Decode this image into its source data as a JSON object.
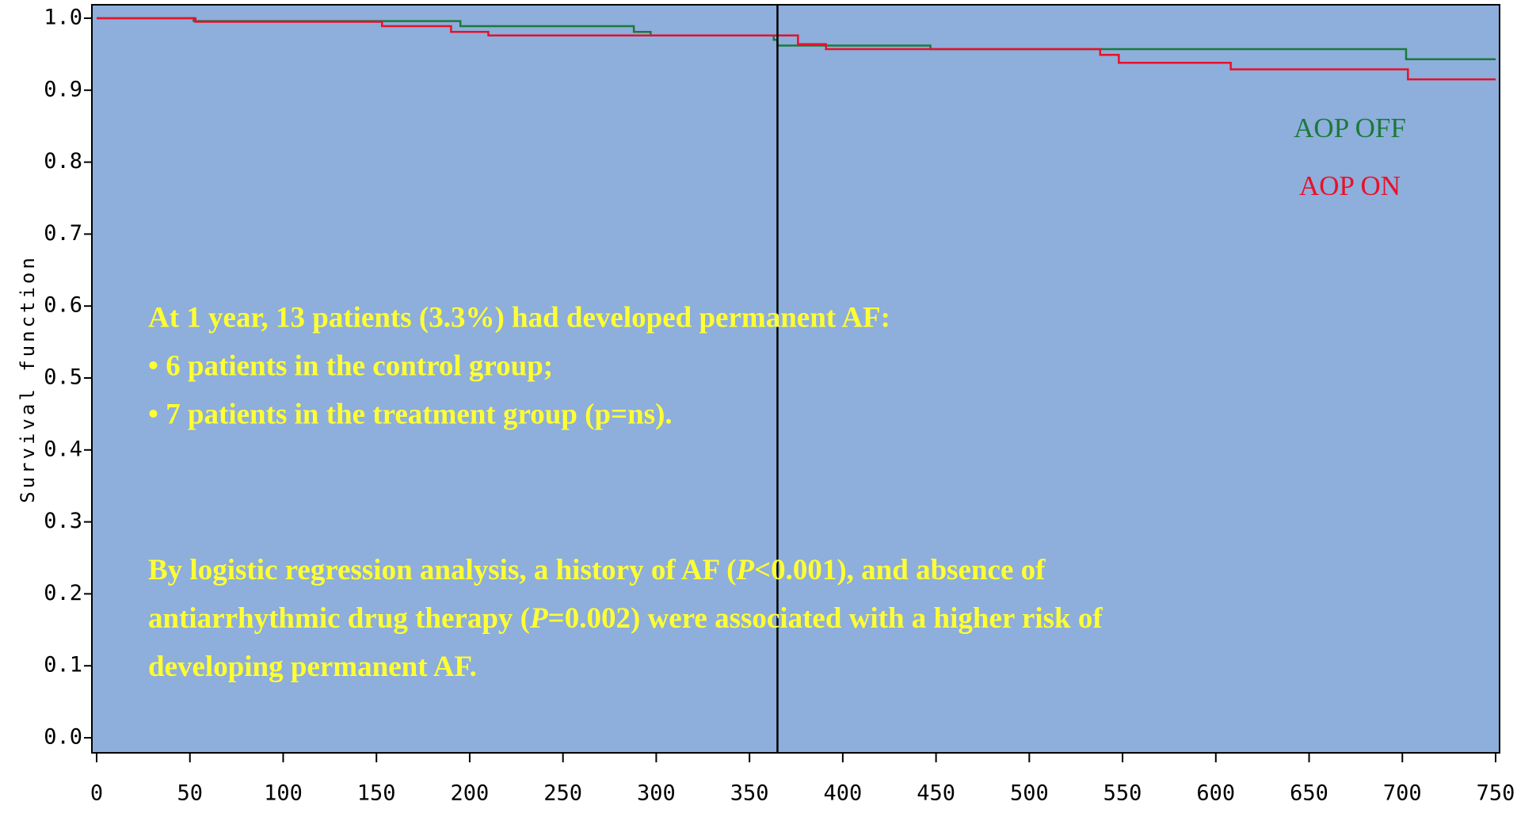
{
  "chart_data": {
    "type": "step",
    "y_label": "Survival function",
    "xlim": [
      0,
      750
    ],
    "ylim": [
      0,
      1
    ],
    "xticks": [
      0,
      50,
      100,
      150,
      200,
      250,
      300,
      350,
      400,
      450,
      500,
      550,
      600,
      650,
      700,
      750
    ],
    "yticks": [
      {
        "value": 0,
        "label": "0.0"
      },
      0.1,
      0.2,
      0.3,
      0.4,
      0.5,
      0.6,
      0.7,
      0.8,
      0.9,
      {
        "value": 1,
        "label": "1.0"
      }
    ],
    "reference_line_x": 365,
    "series": [
      {
        "name": "AOP OFF",
        "color": "#1a7a3a",
        "x": [
          0,
          52,
          195,
          288,
          297,
          363,
          365,
          447,
          702,
          750
        ],
        "values": [
          1,
          0.996,
          0.989,
          0.981,
          0.976,
          0.97,
          0.962,
          0.957,
          0.943,
          0.943
        ]
      },
      {
        "name": "AOP ON",
        "color": "#e8102a",
        "x": [
          0,
          53,
          153,
          190,
          210,
          376,
          391,
          538,
          548,
          608,
          703,
          750
        ],
        "values": [
          1,
          0.995,
          0.989,
          0.981,
          0.976,
          0.964,
          0.957,
          0.949,
          0.938,
          0.929,
          0.915,
          0.915
        ]
      }
    ],
    "annotations": [
      "At 1 year, 13 patients (3.3%) had developed permanent AF:",
      "• 6 patients in the control group;",
      "• 7 patients in the treatment group (p=ns)."
    ],
    "note_lines": [
      [
        "By logistic regression analysis, a history of AF (",
        {
          "text": "P",
          "italic": true
        },
        "<0.001), and absence of"
      ],
      [
        "antiarrhythmic drug therapy (",
        {
          "text": "P",
          "italic": true
        },
        "=0.002) were associated with a higher risk of"
      ],
      [
        "developing permanent AF."
      ]
    ]
  }
}
